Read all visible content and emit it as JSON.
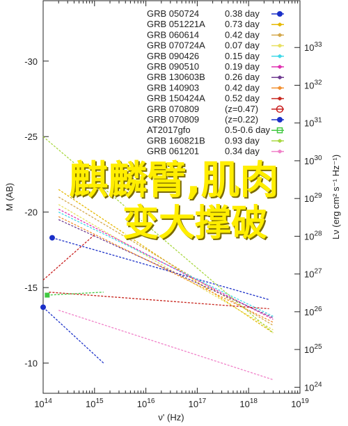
{
  "overlay": {
    "line1": "麒麟臂,肌肉",
    "line2": "变大撑破"
  },
  "chart_data": {
    "type": "line",
    "xlabel": "ν' (Hz)",
    "ylabel_left": "M (AB)",
    "ylabel_right": "Lν (erg cm² s⁻¹ Hz⁻¹)",
    "x_scale": "log",
    "xlim": [
      100000000000000.0,
      1e+19
    ],
    "x_ticks": [
      "10^14",
      "10^15",
      "10^16",
      "10^17",
      "10^18",
      "10^19"
    ],
    "ylim_left": [
      -8,
      -34
    ],
    "y_ticks_left": [
      "-30",
      "-25",
      "-20",
      "-15",
      "-10"
    ],
    "y_ticks_left_values": [
      -30,
      -25,
      -20,
      -15,
      -10
    ],
    "y_ticks_right": [
      "10^24",
      "10^25",
      "10^26",
      "10^27",
      "10^28",
      "10^29",
      "10^30",
      "10^31",
      "10^32",
      "10^33"
    ],
    "y_ticks_right_log": [
      24,
      25,
      26,
      27,
      28,
      29,
      30,
      31,
      32,
      33
    ],
    "legend_position": "top-right",
    "series": [
      {
        "name": "GRB 050724",
        "z": "0.38 day",
        "color": "#1a2fc8",
        "marker": "dot",
        "x": [
          150000000000000.0,
          2.5e+18
        ],
        "y": [
          -18.3,
          -14.2
        ]
      },
      {
        "name": "GRB 051221A",
        "z": "0.73 day",
        "color": "#e6b800",
        "marker": "diamond",
        "x": [
          200000000000000.0,
          3e+18
        ],
        "y": [
          -21.5,
          -12.0
        ]
      },
      {
        "name": "GRB 060614",
        "z": "0.42 day",
        "color": "#d4a84b",
        "marker": "diamond",
        "x": [
          200000000000000.0,
          3e+18
        ],
        "y": [
          -21.0,
          -12.5
        ]
      },
      {
        "name": "GRB 070724A",
        "z": "0.07 day",
        "color": "#e8e060",
        "marker": "diamond",
        "x": [
          200000000000000.0,
          3e+18
        ],
        "y": [
          -20.5,
          -12.2
        ]
      },
      {
        "name": "GRB 090426",
        "z": "0.15 day",
        "color": "#40d8e8",
        "marker": "diamond",
        "x": [
          200000000000000.0,
          3e+18
        ],
        "y": [
          -20.0,
          -13.1
        ]
      },
      {
        "name": "GRB 090510",
        "z": "0.19 day",
        "color": "#e030b0",
        "marker": "diamond",
        "x": [
          200000000000000.0,
          3e+18
        ],
        "y": [
          -20.2,
          -12.9
        ]
      },
      {
        "name": "GRB 130603B",
        "z": "0.26 day",
        "color": "#6e3a90",
        "marker": "diamond",
        "x": [
          200000000000000.0,
          3e+18
        ],
        "y": [
          -19.5,
          -13.0
        ]
      },
      {
        "name": "GRB 140903",
        "z": "0.42 day",
        "color": "#f29030",
        "marker": "diamond",
        "x": [
          200000000000000.0,
          3e+18
        ],
        "y": [
          -19.7,
          -12.7
        ]
      },
      {
        "name": "GRB 150424A",
        "z": "0.52 day",
        "color": "#c82820",
        "marker": "diamond",
        "x": [
          130000000000000.0,
          2.5e+18
        ],
        "y": [
          -14.7,
          -13.6
        ]
      },
      {
        "name": "GRB 070809",
        "z": "(z=0.47)",
        "color": "#c81c1c",
        "marker": "circle-cross",
        "x": [
          100000000000000.0,
          1000000000000000.0
        ],
        "y": [
          -15.5,
          -18.5
        ]
      },
      {
        "name": "GRB 070809",
        "z": "(z=0.22)",
        "color": "#1a2fc8",
        "marker": "dot",
        "x": [
          100000000000000.0,
          1500000000000000.0
        ],
        "y": [
          -13.7,
          -10.0
        ]
      },
      {
        "name": "AT2017gfo",
        "z": "0.5-0.6 day",
        "color": "#40c840",
        "marker": "square",
        "x": [
          120000000000000.0,
          1500000000000000.0
        ],
        "y": [
          -14.5,
          -14.7
        ]
      },
      {
        "name": "GRB 160821B",
        "z": "0.93 day",
        "color": "#a8d840",
        "marker": "diamond",
        "x": [
          100000000000000.0,
          3e+18
        ],
        "y": [
          -25.0,
          -12.0
        ]
      },
      {
        "name": "GRB 061201",
        "z": "0.34 day",
        "color": "#f080c8",
        "marker": "diamond",
        "x": [
          200000000000000.0,
          3e+18
        ],
        "y": [
          -13.5,
          -8.9
        ]
      }
    ]
  }
}
